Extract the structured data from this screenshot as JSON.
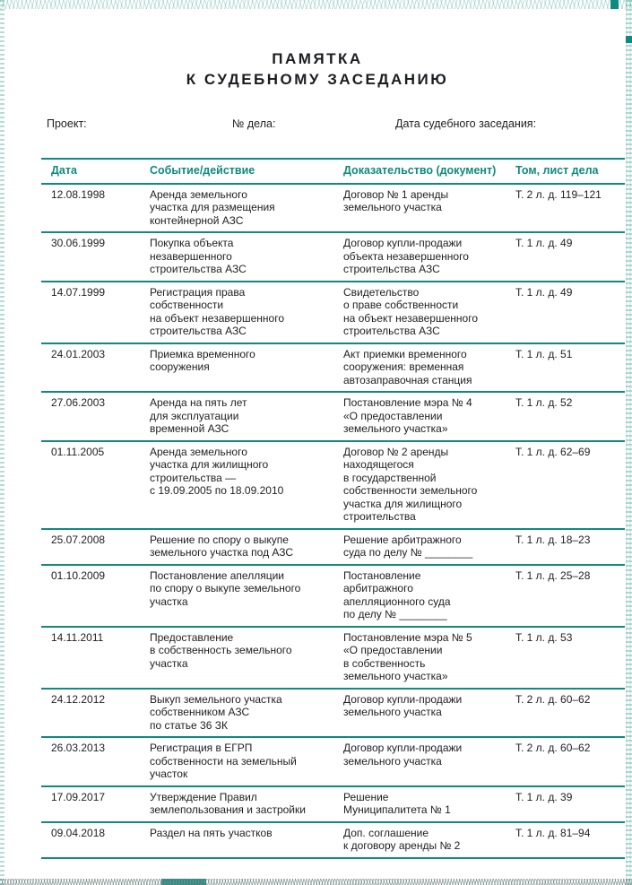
{
  "title": {
    "line1": "ПАМЯТКА",
    "line2": "К СУДЕБНОМУ ЗАСЕДАНИЮ"
  },
  "meta": {
    "project_label": "Проект:",
    "case_label": "№ дела:",
    "hearing_date_label": "Дата судебного заседания:"
  },
  "table": {
    "headers": [
      "Дата",
      "Событие/действие",
      "Доказательство (документ)",
      "Том, лист дела"
    ],
    "rows": [
      {
        "date": "12.08.1998",
        "event": "Аренда земельного\nучастка для размещения\nконтейнерной АЗС",
        "document": "Договор № 1 аренды\nземельного участка",
        "volume": "Т. 2 л. д. 119–121"
      },
      {
        "date": "30.06.1999",
        "event": "Покупка объекта\nнезавершенного\nстроительства АЗС",
        "document": "Договор купли-продажи\nобъекта незавершенного\nстроительства АЗС",
        "volume": "Т. 1 л. д. 49"
      },
      {
        "date": "14.07.1999",
        "event": "Регистрация права\nсобственности\nна объект незавершенного\nстроительства АЗС",
        "document": "Свидетельство\nо праве собственности\nна объект незавершенного\nстроительства АЗС",
        "volume": "Т. 1 л. д. 49"
      },
      {
        "date": "24.01.2003",
        "event": "Приемка временного\nсооружения",
        "document": "Акт приемки временного\nсооружения: временная\nавтозаправочная станция",
        "volume": "Т. 1 л. д. 51"
      },
      {
        "date": "27.06.2003",
        "event": "Аренда на пять лет\nдля эксплуатации\nвременной АЗС",
        "document": "Постановление мэра № 4\n«О предоставлении\nземельного участка»",
        "volume": "Т. 1 л. д. 52"
      },
      {
        "date": "01.11.2005",
        "event": "Аренда земельного\nучастка для жилищного\nстроительства —\nс 19.09.2005 по 18.09.2010",
        "document": "Договор № 2 аренды\nнаходящегося\nв государственной\nсобственности земельного\nучастка для жилищного\nстроительства",
        "volume": "Т. 1 л. д. 62–69"
      },
      {
        "date": "25.07.2008",
        "event": "Решение по спору о выкупе\nземельного участка под АЗС",
        "document": "Решение арбитражного\nсуда по делу № ________",
        "volume": "Т. 1 л. д. 18–23"
      },
      {
        "date": "01.10.2009",
        "event": "Постановление апелляции\nпо спору о выкупе земельного\nучастка",
        "document": "Постановление\nарбитражного\nапелляционного суда\nпо делу № ________",
        "volume": "Т. 1 л. д. 25–28"
      },
      {
        "date": "14.11.2011",
        "event": "Предоставление\nв собственность земельного\nучастка",
        "document": "Постановление мэра № 5\n«О предоставлении\nв собственность\nземельного участка»",
        "volume": "Т. 1 л. д. 53"
      },
      {
        "date": "24.12.2012",
        "event": "Выкуп земельного участка\nсобственником АЗС\nпо статье 36 ЗК",
        "document": "Договор купли-продажи\nземельного участка",
        "volume": "Т. 2 л. д. 60–62"
      },
      {
        "date": "26.03.2013",
        "event": "Регистрация в ЕГРП\nсобственности на земельный\nучасток",
        "document": "Договор купли-продажи\nземельного участка",
        "volume": "Т. 2 л. д. 60–62"
      },
      {
        "date": "17.09.2017",
        "event": "Утверждение Правил\nземлепользования и застройки",
        "document": "Решение\nМуниципалитета № 1",
        "volume": "Т. 1 л. д. 39"
      },
      {
        "date": "09.04.2018",
        "event": "Раздел на пять участков",
        "document": "Доп. соглашение\nк договору аренды № 2",
        "volume": "Т. 1 л. д. 81–94"
      }
    ]
  },
  "colors": {
    "accent_teal": "#0e8a7e",
    "text": "#1e1e1e",
    "pattern_light_teal": "#aacdc8",
    "pattern_bottom_gray": "#8aa19d"
  }
}
